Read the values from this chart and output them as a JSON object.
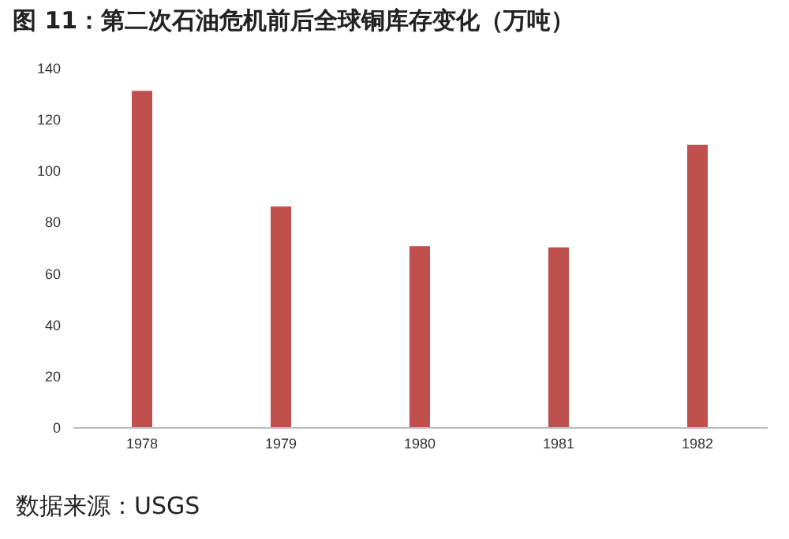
{
  "chart_data": {
    "type": "bar",
    "title": "图 11：第二次石油危机前后全球铜库存变化（万吨）",
    "categories": [
      "1978",
      "1979",
      "1980",
      "1981",
      "1982"
    ],
    "values": [
      131,
      86,
      70.5,
      70,
      110
    ],
    "color": "#c0504d",
    "ylim": [
      0,
      140
    ],
    "yticks": [
      0,
      20,
      40,
      60,
      80,
      100,
      120,
      140
    ],
    "grid": false,
    "annotations": [
      "数据来源：USGS"
    ]
  }
}
